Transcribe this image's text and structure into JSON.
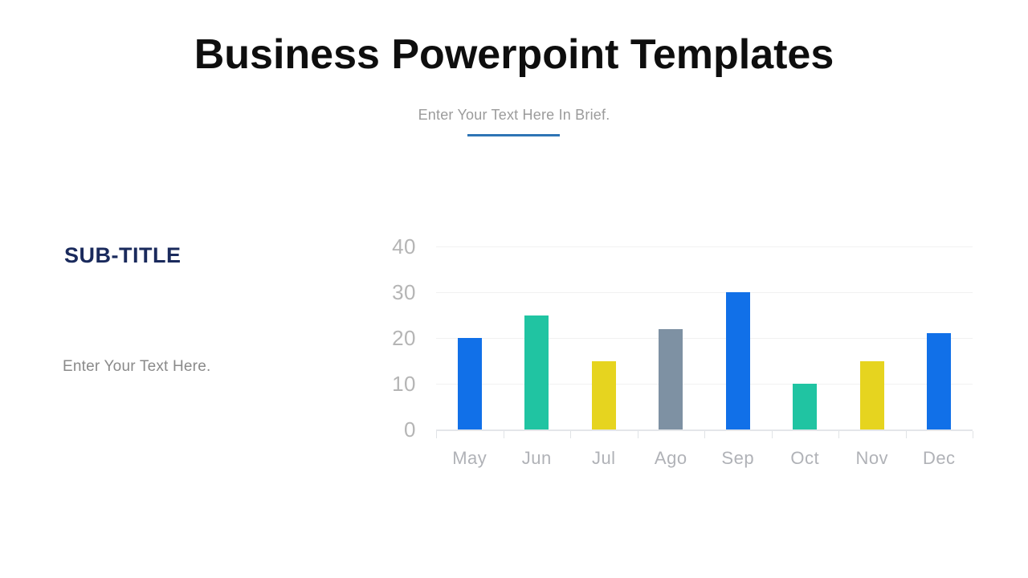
{
  "header": {
    "title": "Business Powerpoint Templates",
    "subtitle": "Enter Your Text Here In Brief.",
    "underline_color": "#2e74b5"
  },
  "left_panel": {
    "subtitle": "SUB-TITLE",
    "subtitle_color": "#1a2a5c",
    "body": "Enter Your Text Here."
  },
  "chart_data": {
    "type": "bar",
    "categories": [
      "May",
      "Jun",
      "Jul",
      "Ago",
      "Sep",
      "Oct",
      "Nov",
      "Dec"
    ],
    "values": [
      20,
      25,
      15,
      22,
      30,
      10,
      15,
      21
    ],
    "bar_colors": [
      "#1170e8",
      "#20c4a2",
      "#e6d41f",
      "#7e91a3",
      "#1170e8",
      "#20c4a2",
      "#e6d41f",
      "#1170e8"
    ],
    "yticks": [
      0,
      10,
      20,
      30,
      40
    ],
    "ylim": [
      0,
      40
    ],
    "title": "",
    "xlabel": "",
    "ylabel": "",
    "grid": "horizontal",
    "legend": "none",
    "tick_label_color": "#b5b5b5",
    "gridline_color": "#f1f1f1",
    "axis_color": "#e4e6e9"
  }
}
